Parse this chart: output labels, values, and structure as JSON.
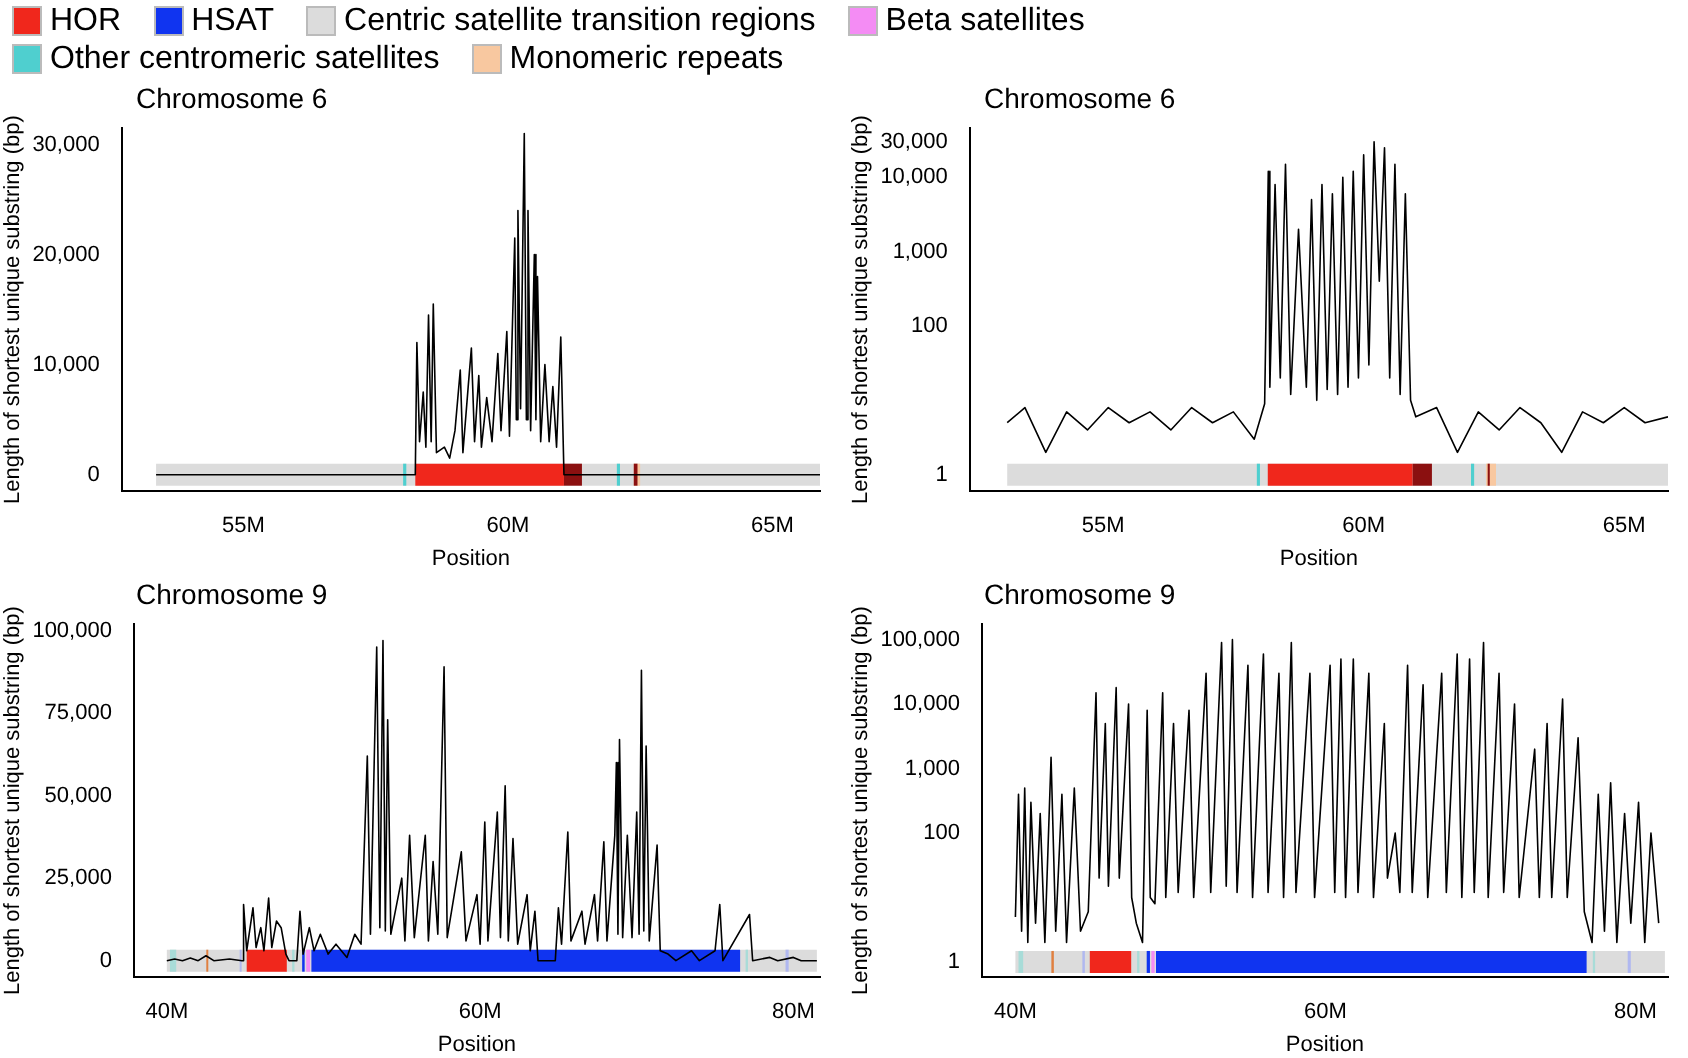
{
  "chart_data": [
    {
      "type": "other",
      "categories": [
        "HOR",
        "HSAT",
        "Centric satellite transition regions",
        "Beta satellites",
        "Other centromeric satellites",
        "Monomeric repeats"
      ],
      "colors": [
        "#f0271c",
        "#1034f0",
        "#dcdcdc",
        "#f48cf4",
        "#4fcfcf",
        "#f8c8a0"
      ]
    },
    {
      "type": "line",
      "title": "Chromosome 6",
      "xlabel": "Position",
      "ylabel": "Length of shortest unique substring (bp)",
      "marker": "none",
      "xlim": [
        52.7,
        65.9
      ],
      "ylim": [
        -1500,
        31500
      ],
      "xticks": [
        {
          "value": 55,
          "label": "55M"
        },
        {
          "value": 60,
          "label": "60M"
        },
        {
          "value": 65,
          "label": "65M"
        }
      ],
      "yticks": [
        {
          "value": 0,
          "label": "0"
        },
        {
          "value": 10000,
          "label": "10,000"
        },
        {
          "value": 20000,
          "label": "20,000"
        },
        {
          "value": 30000,
          "label": "30,000"
        }
      ],
      "series": [
        {
          "color": "#000000",
          "x": [
            53.35,
            58.25,
            58.28,
            58.33,
            58.4,
            58.45,
            58.5,
            58.55,
            58.59,
            58.65,
            58.8,
            58.9,
            59.0,
            59.1,
            59.15,
            59.25,
            59.31,
            59.37,
            59.45,
            59.5,
            59.6,
            59.7,
            59.81,
            59.87,
            59.98,
            60.03,
            60.13,
            60.16,
            60.19,
            60.24,
            60.31,
            60.35,
            60.38,
            60.43,
            60.5,
            60.53,
            60.56,
            60.62,
            60.7,
            60.78,
            60.85,
            60.92,
            61.0,
            61.06,
            65.9
          ],
          "values": [
            0,
            0,
            12000,
            3000,
            7500,
            2500,
            14500,
            3000,
            15500,
            2000,
            2500,
            1500,
            4000,
            9500,
            2000,
            8000,
            11500,
            3000,
            9000,
            2500,
            7000,
            3000,
            11000,
            4000,
            13000,
            3500,
            21500,
            5000,
            24000,
            6000,
            31000,
            5000,
            24000,
            4000,
            20000,
            5000,
            18000,
            3000,
            10000,
            3000,
            8000,
            2500,
            12500,
            0,
            0
          ]
        }
      ],
      "bands": [
        {
          "axis": "x",
          "from": 53.35,
          "to": 65.9,
          "color": "#dcdcdc"
        },
        {
          "axis": "x",
          "from": 58.02,
          "to": 58.08,
          "color": "#4fcfcf"
        },
        {
          "axis": "x",
          "from": 58.25,
          "to": 61.06,
          "color": "#f0271c"
        },
        {
          "axis": "x",
          "from": 61.06,
          "to": 61.4,
          "color": "#8b1010"
        },
        {
          "axis": "x",
          "from": 62.06,
          "to": 62.12,
          "color": "#4fcfcf"
        },
        {
          "axis": "x",
          "from": 62.38,
          "to": 62.5,
          "color": "#f8c8a0"
        },
        {
          "axis": "x",
          "from": 62.38,
          "to": 62.45,
          "color": "#8b1010"
        }
      ]
    },
    {
      "type": "line",
      "title": "Chromosome 6",
      "xlabel": "Position",
      "ylabel": "Length of shortest unique substring (bp)",
      "marker": "none",
      "log": "y",
      "xlim": [
        52.44,
        65.84
      ],
      "ylim": [
        0.63,
        46000
      ],
      "xticks": [
        {
          "value": 55,
          "label": "55M"
        },
        {
          "value": 60,
          "label": "60M"
        },
        {
          "value": 65,
          "label": "65M"
        }
      ],
      "yticks": [
        {
          "value": 1,
          "label": "1"
        },
        {
          "value": 100,
          "label": "100"
        },
        {
          "value": 1000,
          "label": "1,000"
        },
        {
          "value": 10000,
          "label": "10,000"
        },
        {
          "value": 30000,
          "label": "30,000"
        }
      ],
      "series": [
        {
          "color": "#000000",
          "x": [
            53.16,
            53.5,
            53.9,
            54.3,
            54.7,
            55.1,
            55.5,
            55.9,
            56.3,
            56.7,
            57.1,
            57.5,
            57.9,
            58.1,
            58.17,
            58.2,
            58.3,
            58.4,
            58.5,
            58.6,
            58.75,
            58.9,
            59.0,
            59.1,
            59.2,
            59.3,
            59.4,
            59.5,
            59.6,
            59.7,
            59.8,
            59.9,
            60.0,
            60.1,
            60.2,
            60.3,
            60.4,
            60.5,
            60.6,
            60.7,
            60.8,
            60.9,
            61.0,
            61.4,
            61.8,
            62.2,
            62.6,
            63.0,
            63.4,
            63.8,
            64.2,
            64.6,
            65.0,
            65.4,
            65.84
          ],
          "values": [
            5,
            8,
            2,
            7,
            4,
            8,
            5,
            7,
            4,
            8,
            5,
            7,
            3,
            9,
            12000,
            15,
            8000,
            20,
            15000,
            12,
            2000,
            15,
            5000,
            10,
            8000,
            14,
            6000,
            12,
            10000,
            15,
            12000,
            20,
            20000,
            30,
            30000,
            400,
            25000,
            20,
            15000,
            12,
            6000,
            10,
            6,
            8,
            2,
            7,
            4,
            8,
            5,
            2,
            7,
            5,
            8,
            5,
            6
          ]
        }
      ],
      "bands": [
        {
          "axis": "x",
          "from": 53.16,
          "to": 65.84,
          "color": "#dcdcdc"
        },
        {
          "axis": "x",
          "from": 57.95,
          "to": 58.01,
          "color": "#4fcfcf"
        },
        {
          "axis": "x",
          "from": 58.16,
          "to": 60.94,
          "color": "#f0271c"
        },
        {
          "axis": "x",
          "from": 60.94,
          "to": 61.31,
          "color": "#8b1010"
        },
        {
          "axis": "x",
          "from": 62.06,
          "to": 62.12,
          "color": "#4fcfcf"
        },
        {
          "axis": "x",
          "from": 62.35,
          "to": 62.54,
          "color": "#f8c8a0"
        },
        {
          "axis": "x",
          "from": 62.38,
          "to": 62.42,
          "color": "#8b1010"
        }
      ]
    },
    {
      "type": "line",
      "title": "Chromosome 9",
      "xlabel": "Position",
      "ylabel": "Length of shortest unique substring (bp)",
      "marker": "none",
      "xlim": [
        37.9,
        81.7
      ],
      "ylim": [
        -5000,
        102000
      ],
      "xticks": [
        {
          "value": 40,
          "label": "40M"
        },
        {
          "value": 60,
          "label": "60M"
        },
        {
          "value": 80,
          "label": "80M"
        }
      ],
      "yticks": [
        {
          "value": 0,
          "label": "0"
        },
        {
          "value": 25000,
          "label": "25,000"
        },
        {
          "value": 50000,
          "label": "50,000"
        },
        {
          "value": 75000,
          "label": "75,000"
        },
        {
          "value": 100000,
          "label": "100,000"
        }
      ],
      "series": [
        {
          "color": "#000000",
          "x": [
            40.0,
            40.5,
            41,
            41.5,
            42,
            42.5,
            43,
            44,
            44.8,
            44.9,
            45.1,
            45.5,
            45.7,
            46.0,
            46.2,
            46.5,
            46.7,
            47.0,
            47.3,
            47.6,
            47.8,
            48.3,
            48.5,
            48.7,
            49.1,
            49.4,
            49.8,
            50.3,
            50.8,
            51.5,
            52.0,
            52.4,
            52.8,
            53.0,
            53.4,
            53.6,
            53.8,
            53.95,
            54.1,
            54.3,
            55.0,
            55.2,
            55.5,
            55.8,
            56.5,
            56.7,
            57.0,
            57.3,
            57.7,
            57.9,
            58.8,
            59.1,
            59.8,
            60.0,
            60.3,
            60.5,
            61.1,
            61.3,
            61.6,
            61.8,
            62.1,
            62.4,
            63.0,
            63.2,
            63.5,
            63.7,
            64.8,
            65.0,
            65.2,
            65.6,
            65.8,
            66.5,
            66.7,
            67.3,
            67.5,
            67.9,
            68.1,
            68.6,
            68.7,
            68.8,
            68.9,
            69.1,
            69.4,
            69.7,
            70.0,
            70.15,
            70.3,
            70.45,
            70.6,
            70.8,
            71.3,
            71.5,
            72.0,
            72.5,
            73.5,
            74.0,
            75.0,
            75.3,
            75.5,
            77.2,
            77.4,
            78.5,
            79.0,
            80.0,
            80.5,
            81.5
          ],
          "values": [
            0,
            500,
            0,
            800,
            0,
            1500,
            0,
            500,
            0,
            17000,
            3000,
            16000,
            4000,
            10000,
            3000,
            19000,
            4000,
            12000,
            10000,
            2000,
            0,
            0,
            15000,
            2000,
            10000,
            3000,
            8000,
            2000,
            5000,
            1000,
            8000,
            5000,
            62000,
            8000,
            95000,
            10000,
            97000,
            9000,
            73000,
            8000,
            25000,
            6000,
            38000,
            7000,
            38000,
            6000,
            30000,
            8000,
            89000,
            7000,
            33000,
            6000,
            20000,
            5000,
            42000,
            6000,
            45000,
            7000,
            53000,
            6000,
            37000,
            5000,
            20000,
            3000,
            15000,
            0,
            0,
            16000,
            5000,
            39000,
            6000,
            15000,
            5000,
            20000,
            6000,
            36000,
            6000,
            38000,
            60000,
            8000,
            67000,
            7000,
            38000,
            7000,
            45000,
            8000,
            88000,
            9000,
            65000,
            6000,
            35000,
            3000,
            2000,
            0,
            3000,
            0,
            3000,
            17000,
            0,
            14000,
            0,
            1000,
            0,
            1000,
            0,
            0
          ]
        }
      ],
      "bands": [
        {
          "axis": "x",
          "from": 40,
          "to": 81.5,
          "color": "#dcdcdc"
        },
        {
          "axis": "x",
          "from": 40.2,
          "to": 40.6,
          "color": "#a8dcd8"
        },
        {
          "axis": "x",
          "from": 42.52,
          "to": 42.6,
          "color": "#e08040"
        },
        {
          "axis": "x",
          "from": 44.65,
          "to": 44.75,
          "color": "#b0b8f0"
        },
        {
          "axis": "x",
          "from": 45.1,
          "to": 47.66,
          "color": "#f0271c"
        },
        {
          "axis": "x",
          "from": 48.0,
          "to": 48.15,
          "color": "#a8dcd8"
        },
        {
          "axis": "x",
          "from": 48.64,
          "to": 48.8,
          "color": "#1034f0"
        },
        {
          "axis": "x",
          "from": 48.9,
          "to": 49.15,
          "color": "#f48cf4"
        },
        {
          "axis": "x",
          "from": 49.23,
          "to": 76.6,
          "color": "#1034f0"
        },
        {
          "axis": "x",
          "from": 76.95,
          "to": 77.1,
          "color": "#a8dcd8"
        },
        {
          "axis": "x",
          "from": 79.5,
          "to": 79.7,
          "color": "#b0b8f0"
        }
      ]
    },
    {
      "type": "line",
      "title": "Chromosome 9",
      "xlabel": "Position",
      "ylabel": "Length of shortest unique substring (bp)",
      "marker": "none",
      "log": "y",
      "xlim": [
        37.84,
        82.1
      ],
      "ylim": [
        0.58,
        175000
      ],
      "xticks": [
        {
          "value": 40,
          "label": "40M"
        },
        {
          "value": 60,
          "label": "60M"
        },
        {
          "value": 80,
          "label": "80M"
        }
      ],
      "yticks": [
        {
          "value": 1,
          "label": "1"
        },
        {
          "value": 100,
          "label": "100"
        },
        {
          "value": 1000,
          "label": "1,000"
        },
        {
          "value": 10000,
          "label": "10,000"
        },
        {
          "value": 100000,
          "label": "100,000"
        }
      ],
      "series": [
        {
          "color": "#000000",
          "x": [
            40.0,
            40.2,
            40.4,
            40.6,
            40.8,
            41.0,
            41.3,
            41.6,
            41.9,
            42.3,
            42.6,
            43.0,
            43.3,
            43.8,
            44.2,
            44.7,
            45.2,
            45.4,
            45.8,
            46.0,
            46.5,
            46.7,
            47.3,
            47.5,
            47.8,
            48.2,
            48.5,
            48.7,
            49.0,
            49.5,
            49.7,
            50.2,
            50.5,
            51.2,
            51.5,
            52.3,
            52.6,
            53.3,
            53.6,
            54.0,
            54.3,
            55.0,
            55.3,
            56.0,
            56.3,
            57.0,
            57.3,
            57.8,
            58.1,
            59.0,
            59.3,
            60.3,
            60.6,
            61.0,
            61.3,
            61.8,
            62.1,
            62.8,
            63.1,
            63.8,
            64.0,
            64.5,
            64.8,
            65.3,
            65.6,
            66.3,
            66.6,
            67.5,
            67.8,
            68.5,
            68.8,
            69.3,
            69.6,
            70.2,
            70.5,
            71.2,
            71.5,
            72.2,
            72.5,
            73.5,
            73.8,
            74.3,
            74.6,
            75.3,
            75.6,
            76.3,
            76.7,
            77.2,
            77.6,
            78.0,
            78.4,
            78.8,
            79.3,
            79.7,
            80.2,
            80.6,
            81.0,
            81.5
          ],
          "values": [
            5,
            400,
            3,
            500,
            2,
            300,
            4,
            200,
            2,
            1500,
            3,
            400,
            2,
            500,
            3,
            6,
            15000,
            20,
            5000,
            15,
            18000,
            20,
            10000,
            10,
            4,
            2,
            8000,
            10,
            8,
            15000,
            10,
            5000,
            12,
            8000,
            10,
            30000,
            12,
            90000,
            15,
            100000,
            12,
            40000,
            10,
            60000,
            12,
            30000,
            10,
            90000,
            12,
            30000,
            10,
            40000,
            12,
            50000,
            10,
            50000,
            12,
            30000,
            10,
            5000,
            20,
            100,
            12,
            40000,
            12,
            20000,
            10,
            30000,
            12,
            60000,
            10,
            50000,
            12,
            90000,
            10,
            30000,
            12,
            10000,
            10,
            2000,
            10,
            5000,
            10,
            12000,
            10,
            3000,
            6,
            2,
            400,
            3,
            600,
            2,
            200,
            4,
            300,
            2,
            100,
            4
          ]
        }
      ],
      "bands": [
        {
          "axis": "x",
          "from": 40,
          "to": 81.9,
          "color": "#dcdcdc"
        },
        {
          "axis": "x",
          "from": 40.2,
          "to": 40.5,
          "color": "#a8dcd8"
        },
        {
          "axis": "x",
          "from": 42.32,
          "to": 42.48,
          "color": "#e08040"
        },
        {
          "axis": "x",
          "from": 44.32,
          "to": 44.48,
          "color": "#b0b8f0"
        },
        {
          "axis": "x",
          "from": 44.8,
          "to": 47.47,
          "color": "#f0271c"
        },
        {
          "axis": "x",
          "from": 47.85,
          "to": 48.0,
          "color": "#a8dcd8"
        },
        {
          "axis": "x",
          "from": 48.47,
          "to": 48.68,
          "color": "#1034f0"
        },
        {
          "axis": "x",
          "from": 48.77,
          "to": 48.98,
          "color": "#f48cf4"
        },
        {
          "axis": "x",
          "from": 49.07,
          "to": 76.85,
          "color": "#1034f0"
        },
        {
          "axis": "x",
          "from": 77.25,
          "to": 77.4,
          "color": "#a8dcd8"
        },
        {
          "axis": "x",
          "from": 79.5,
          "to": 79.7,
          "color": "#b0b8f0"
        }
      ]
    }
  ]
}
